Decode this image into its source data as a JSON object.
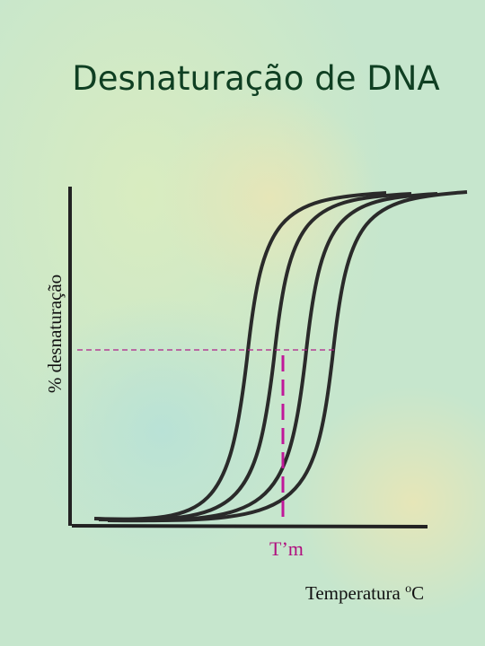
{
  "title": "Desnaturação de DNA",
  "axes": {
    "y_label": "% desnaturação",
    "x_label": "Temperatura ",
    "x_unit_sup": "o",
    "x_unit": "C"
  },
  "marker": "T’m"
}
